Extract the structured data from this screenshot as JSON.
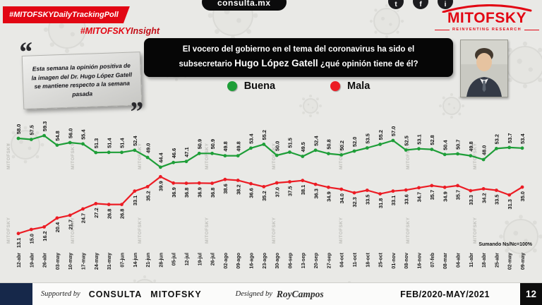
{
  "header": {
    "tracking_badge": "#MITOFSKYDailyTrackingPoll",
    "insight_hash": "#MITOFSKY",
    "insight_word": "Insight",
    "site": "consulta.mx",
    "brand": "MITOFSKY",
    "brand_tagline": "REINVENTING RESEARCH"
  },
  "icons": {
    "quote_open": "“",
    "quote_close": "”",
    "twitter_glyph": "t",
    "facebook_glyph": "f",
    "instagram_glyph": "i"
  },
  "quote": {
    "text": "Esta semana la opinión positiva de la imagen del Dr. Hugo López Gatell se mantiene respecto a la semana pasada"
  },
  "question": {
    "line1": "El vocero del gobierno en el tema del coronavirus ha sido el",
    "line2_pre": "subsecretario ",
    "name": "Hugo López Gatell",
    "line2_post": " ¿qué opinión tiene de él?"
  },
  "legend": {
    "buena": "Buena",
    "mala": "Mala"
  },
  "colors": {
    "buena": "#1e9e38",
    "mala": "#ec1c24",
    "accent_red": "#e20613",
    "navy": "#16284a"
  },
  "note": "Sumando Ns/Nc=100%",
  "watermark": "MITOFSKY",
  "footer": {
    "supported_by": "Supported by",
    "supporter1": "CONSULTA",
    "supporter2": "MITOFSKY",
    "designed_by": "Designed by",
    "designer": "RoyCampos",
    "period": "FEB/2020-MAY/2021",
    "page": "12"
  },
  "chart_data": {
    "type": "line",
    "title": "El vocero del gobierno en el tema del coronavirus ha sido el subsecretario Hugo López Gatell ¿qué opinión tiene de él?",
    "xlabel": "",
    "ylabel": "",
    "ylim": [
      10,
      62
    ],
    "grid": false,
    "legend_position": "top",
    "value_labels": "rotated",
    "categories": [
      "12-abr",
      "19-abr",
      "26-abr",
      "03-may",
      "10-may",
      "17-may",
      "24-may",
      "31-may",
      "07-jun",
      "14-jun",
      "21-jun",
      "28-jun",
      "05-jul",
      "12-jul",
      "19-jul",
      "26-jul",
      "02-ago",
      "09-ago",
      "16-ago",
      "23-ago",
      "30-ago",
      "06-sep",
      "13-sep",
      "20-sep",
      "27-sep",
      "04-oct",
      "11-oct",
      "18-oct",
      "25-oct",
      "01-nov",
      "08-nov",
      "16-nov",
      "07-feb",
      "08-mar",
      "04-abr",
      "11-abr",
      "18-abr",
      "25-abr",
      "02-may",
      "09-may"
    ],
    "series": [
      {
        "name": "Buena",
        "color": "#1e9e38",
        "values": [
          58.0,
          57.5,
          59.3,
          54.8,
          56.0,
          55.4,
          51.3,
          51.4,
          51.4,
          52.4,
          49.0,
          44.4,
          46.6,
          47.1,
          50.9,
          50.9,
          49.8,
          49.8,
          53.4,
          55.2,
          50.0,
          51.5,
          49.5,
          52.4,
          50.8,
          50.2,
          52.0,
          53.5,
          55.2,
          57.0,
          52.5,
          53.1,
          52.8,
          50.4,
          50.7,
          49.8,
          48.0,
          53.2,
          53.7,
          53.4
        ]
      },
      {
        "name": "Mala",
        "color": "#ec1c24",
        "values": [
          13.1,
          15.0,
          16.2,
          20.4,
          21.7,
          24.7,
          27.2,
          26.8,
          26.8,
          33.1,
          35.2,
          39.9,
          36.9,
          36.8,
          36.9,
          36.8,
          38.6,
          38.2,
          36.6,
          35.2,
          37.0,
          37.5,
          38.1,
          36.3,
          34.9,
          34.0,
          32.3,
          33.5,
          31.8,
          33.1,
          33.6,
          34.7,
          35.7,
          34.9,
          35.7,
          33.3,
          34.2,
          33.5,
          31.3,
          35.0
        ]
      }
    ]
  }
}
